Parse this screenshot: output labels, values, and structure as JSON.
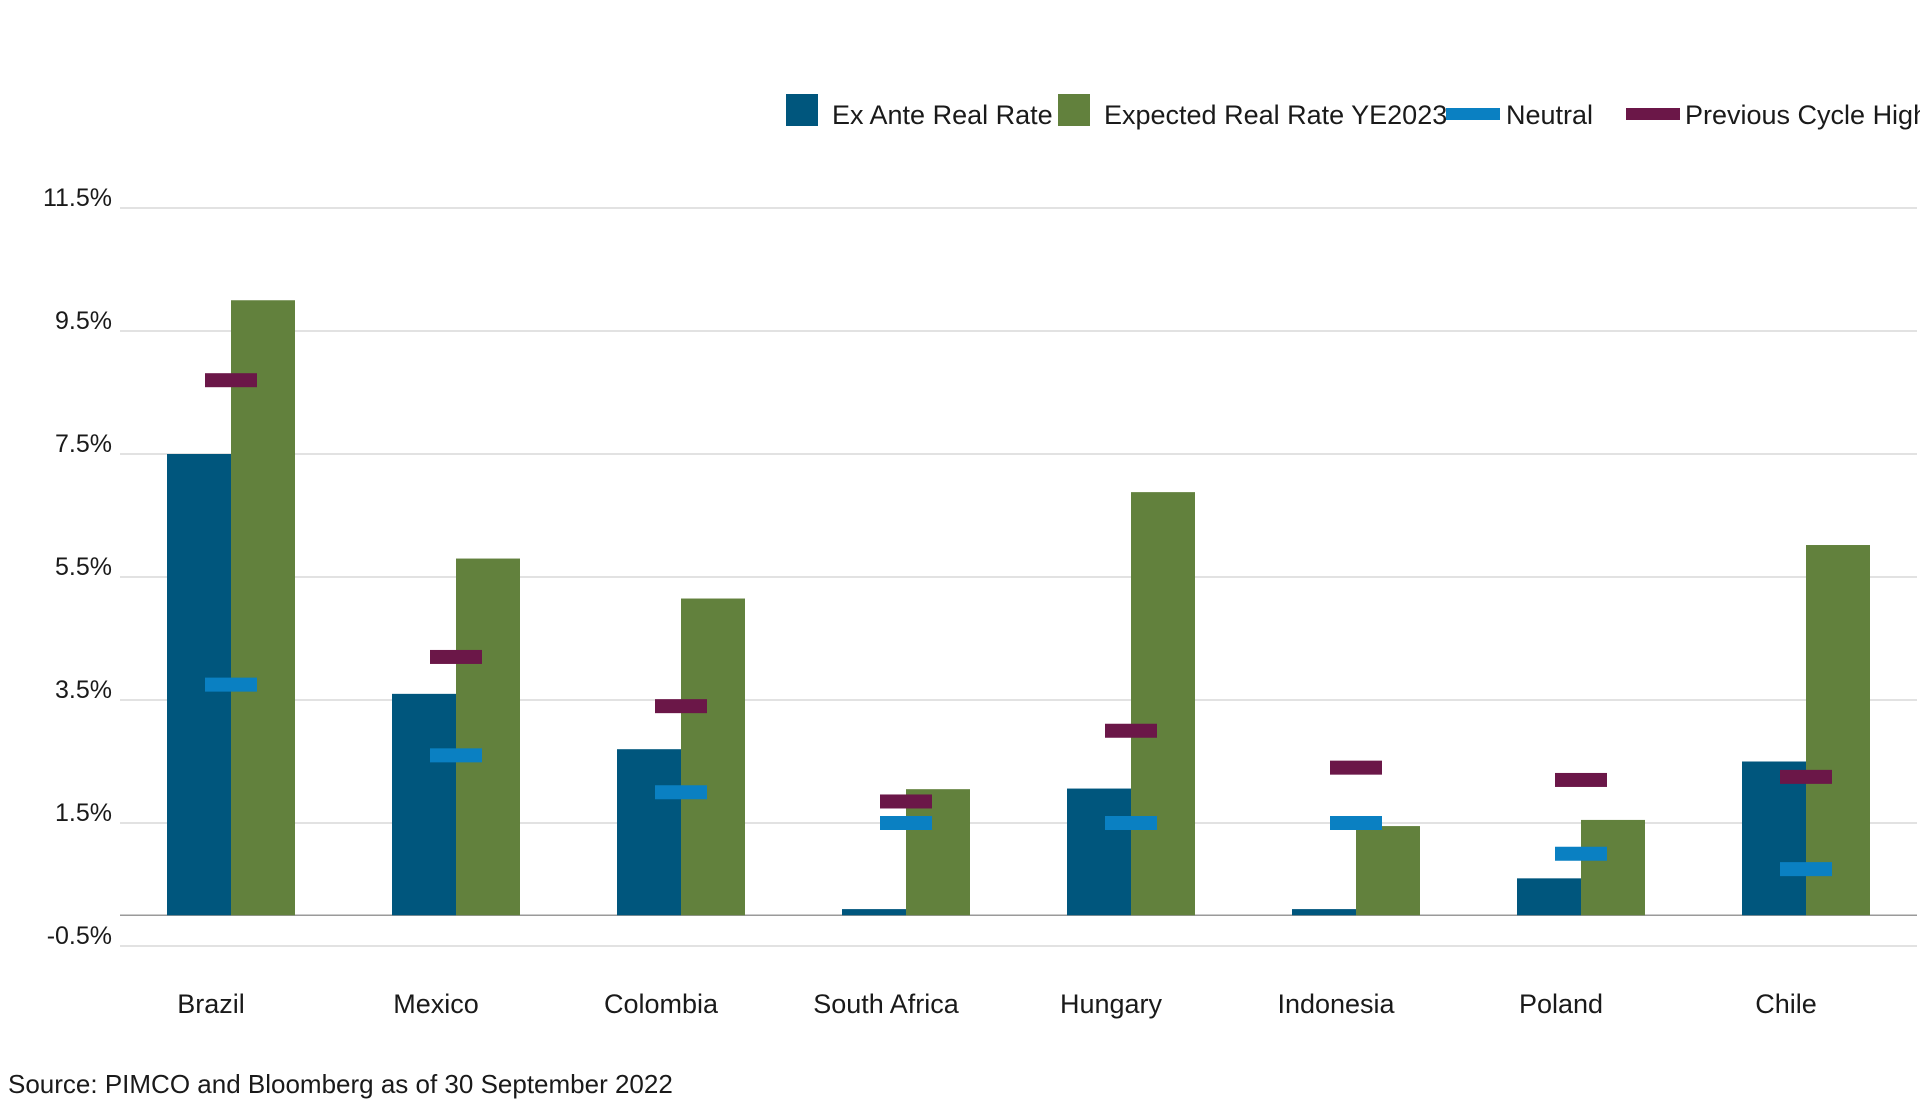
{
  "chart_data": {
    "type": "bar",
    "categories": [
      "Brazil",
      "Mexico",
      "Colombia",
      "South Africa",
      "Hungary",
      "Indonesia",
      "Poland",
      "Chile"
    ],
    "series": [
      {
        "name": "Ex Ante Real Rate",
        "kind": "bar",
        "color": "#00567d",
        "values": [
          7.5,
          3.6,
          2.7,
          0.1,
          2.06,
          0.1,
          0.6,
          2.5
        ]
      },
      {
        "name": "Expected Real Rate YE2023",
        "kind": "bar",
        "color": "#62813d",
        "values": [
          10.0,
          5.8,
          5.15,
          2.05,
          6.88,
          1.45,
          1.55,
          6.02
        ]
      },
      {
        "name": "Neutral",
        "kind": "marker",
        "color": "#0a80c2",
        "values": [
          3.75,
          2.6,
          2.0,
          1.5,
          1.5,
          1.5,
          1.0,
          0.75
        ]
      },
      {
        "name": "Previous Cycle High",
        "kind": "marker",
        "color": "#6b1748",
        "values": [
          8.7,
          4.2,
          3.4,
          1.85,
          3.0,
          2.4,
          2.2,
          2.25
        ]
      }
    ],
    "y_ticks": [
      "11.5%",
      "9.5%",
      "7.5%",
      "5.5%",
      "3.5%",
      "1.5%",
      "-0.5%"
    ],
    "y_tick_values": [
      11.5,
      9.5,
      7.5,
      5.5,
      3.5,
      1.5,
      -0.5
    ],
    "ylim": [
      -0.5,
      11.5
    ],
    "grid": true,
    "legend_position": "top-right",
    "title": "",
    "xlabel": "",
    "ylabel": ""
  },
  "source_note": "Source: PIMCO and Bloomberg as of 30 September 2022"
}
